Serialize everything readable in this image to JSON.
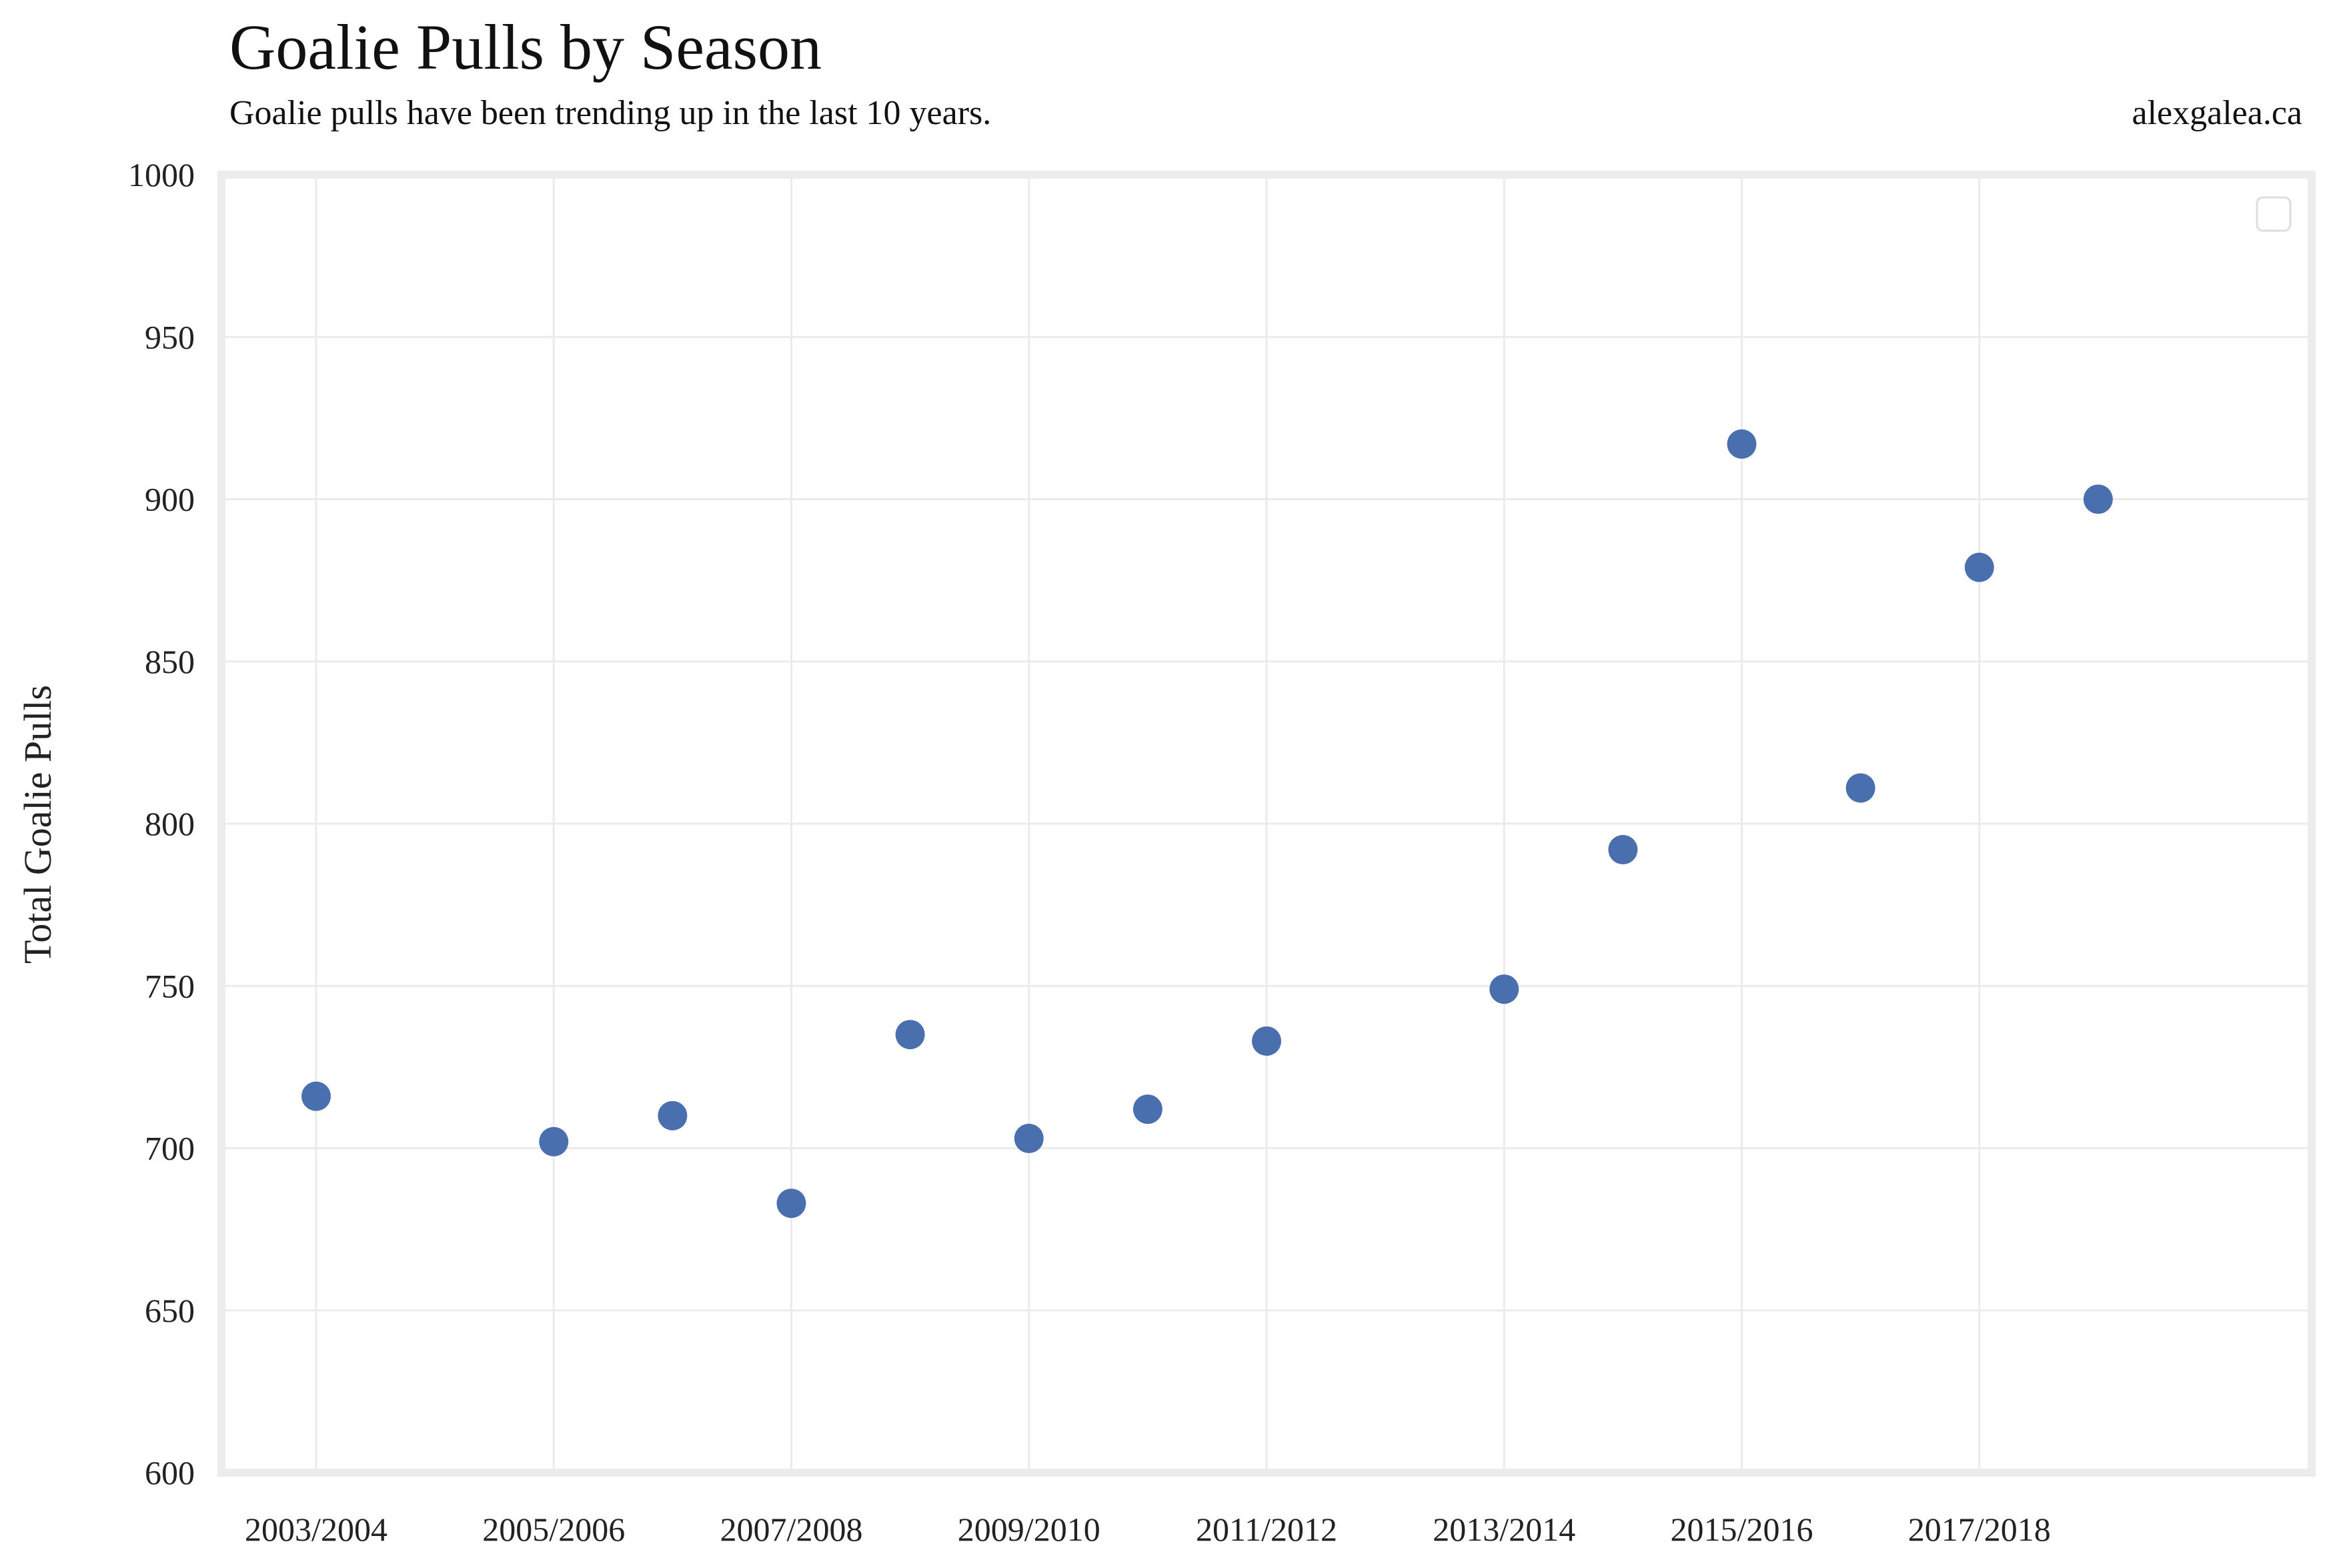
{
  "title": "Goalie Pulls by Season",
  "subtitle": "Goalie pulls have been trending up in the last 10 years.",
  "credit": "alexgalea.ca",
  "colors": {
    "point": "#4a6fae",
    "grid": "#ebebeb",
    "frame": "#ececec"
  },
  "chart_data": {
    "type": "scatter",
    "title": "Goalie Pulls by Season",
    "subtitle": "Goalie pulls have been trending up in the last 10 years.",
    "xlabel": "",
    "ylabel": "Total Goalie Pulls",
    "x_ticks": [
      "2003/2004",
      "2005/2006",
      "2007/2008",
      "2009/2010",
      "2011/2012",
      "2013/2014",
      "2015/2016",
      "2017/2018"
    ],
    "y_ticks": [
      600,
      650,
      700,
      750,
      800,
      850,
      900,
      950,
      1000
    ],
    "ylim": [
      600,
      1000
    ],
    "grid": true,
    "legend": "top-right (empty)",
    "points": [
      {
        "season": "2003/2004",
        "value": 716
      },
      {
        "season": "2005/2006",
        "value": 702
      },
      {
        "season": "2006/2007",
        "value": 710
      },
      {
        "season": "2007/2008",
        "value": 683
      },
      {
        "season": "2008/2009",
        "value": 735
      },
      {
        "season": "2009/2010",
        "value": 703
      },
      {
        "season": "2010/2011",
        "value": 712
      },
      {
        "season": "2011/2012",
        "value": 733
      },
      {
        "season": "2013/2014",
        "value": 749
      },
      {
        "season": "2014/2015",
        "value": 792
      },
      {
        "season": "2015/2016",
        "value": 917
      },
      {
        "season": "2016/2017",
        "value": 811
      },
      {
        "season": "2017/2018",
        "value": 879
      },
      {
        "season": "2018/2019",
        "value": 900
      }
    ]
  }
}
